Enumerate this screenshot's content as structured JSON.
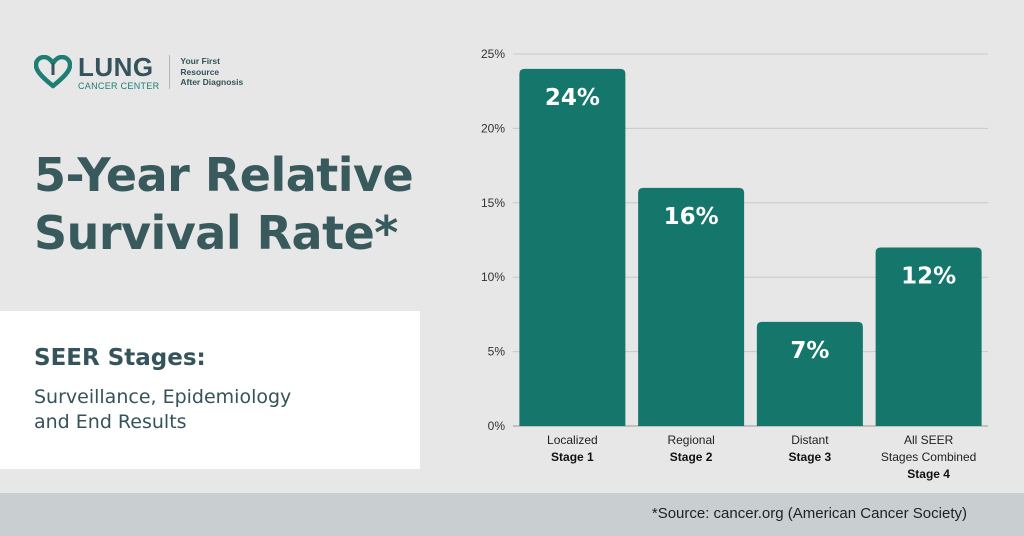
{
  "brand": {
    "name": "LUNG",
    "sub": "CANCER CENTER",
    "tagline_1": "Your First Resource",
    "tagline_2": "After Diagnosis",
    "icon": "heart-lungs-icon",
    "color": "#1e7e74"
  },
  "title_line_1": "5-Year Relative",
  "title_line_2": "Survival Rate*",
  "seer": {
    "heading": "SEER Stages:",
    "sub_line_1": "Surveillance, Epidemiology",
    "sub_line_2": "and End Results"
  },
  "source": "*Source: cancer.org (American Cancer Society)",
  "chart_data": {
    "type": "bar",
    "categories": [
      "Localized",
      "Regional",
      "Distant",
      "All SEER Stages Combined"
    ],
    "category_lines": [
      [
        "Localized"
      ],
      [
        "Regional"
      ],
      [
        "Distant"
      ],
      [
        "All SEER",
        "Stages Combined"
      ]
    ],
    "stages": [
      "Stage 1",
      "Stage 2",
      "Stage 3",
      "Stage 4"
    ],
    "values": [
      24,
      16,
      7,
      12
    ],
    "data_labels": [
      "24%",
      "16%",
      "7%",
      "12%"
    ],
    "ylim": [
      0,
      25
    ],
    "yticks": [
      0,
      5,
      10,
      15,
      20,
      25
    ],
    "ytick_labels": [
      "0%",
      "5%",
      "10%",
      "15%",
      "20%",
      "25%"
    ],
    "bar_color": "#15766b",
    "grid": true,
    "title": "",
    "xlabel": "",
    "ylabel": ""
  }
}
